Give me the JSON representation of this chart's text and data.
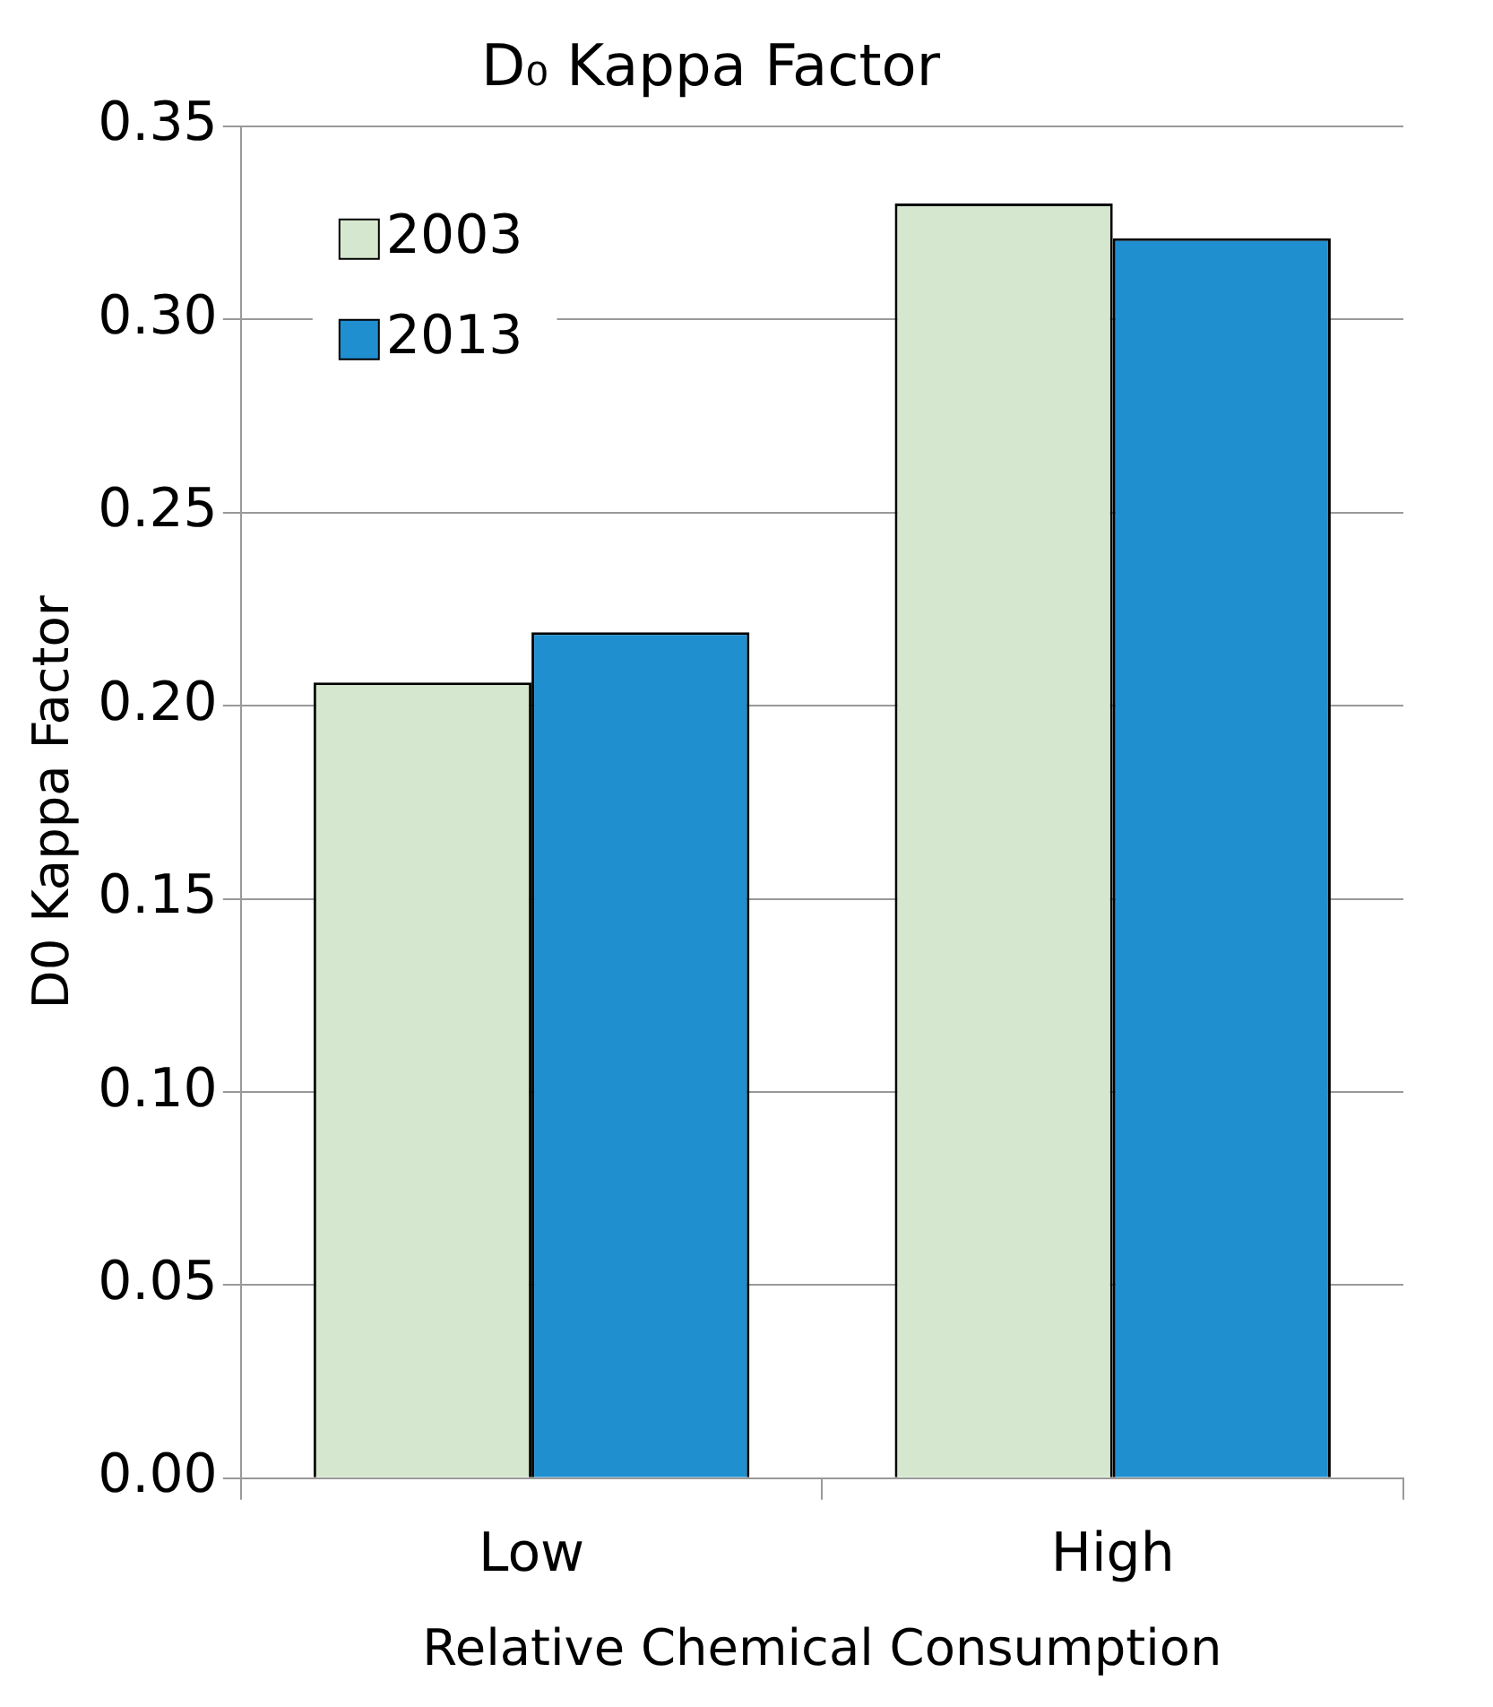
{
  "chart_data": {
    "type": "bar",
    "title": "D₀ Kappa Factor",
    "xlabel": "Relative Chemical Consumption",
    "ylabel": "D0 Kappa Factor",
    "categories": [
      "Low",
      "High"
    ],
    "series": [
      {
        "name": "2003",
        "color": "#d5e8cf",
        "values": [
          0.206,
          0.33
        ]
      },
      {
        "name": "2013",
        "color": "#1f8fd0",
        "values": [
          0.219,
          0.321
        ]
      }
    ],
    "ylim": [
      0,
      0.35
    ],
    "yticks": [
      {
        "value": 0,
        "label": "0.00"
      },
      {
        "value": 0.05,
        "label": "0.05"
      },
      {
        "value": 0.1,
        "label": "0.10"
      },
      {
        "value": 0.15,
        "label": "0.15"
      },
      {
        "value": 0.2,
        "label": "0.20"
      },
      {
        "value": 0.25,
        "label": "0.25"
      },
      {
        "value": 0.3,
        "label": "0.30"
      },
      {
        "value": 0.35,
        "label": "0.35"
      }
    ],
    "grid": "y",
    "legend": "top left"
  }
}
